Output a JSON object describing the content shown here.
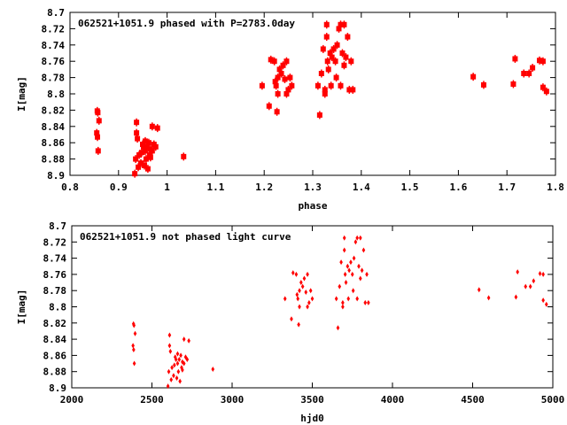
{
  "colors": {
    "points": "#ff0000",
    "axes": "#000000"
  },
  "chart_data": [
    {
      "type": "scatter",
      "title": "062521+1051.9 phased with P=2783.0day",
      "xlabel": "phase",
      "ylabel": "I[mag]",
      "xlim": [
        0.8,
        1.8
      ],
      "ylim": [
        8.7,
        8.9
      ],
      "y_inverted": true,
      "xticks": [
        "0.8",
        "0.9",
        "1",
        "1.1",
        "1.2",
        "1.3",
        "1.4",
        "1.5",
        "1.6",
        "1.7",
        "1.8"
      ],
      "yticks": [
        "8.7",
        "8.72",
        "8.74",
        "8.76",
        "8.78",
        "8.8",
        "8.82",
        "8.84",
        "8.86",
        "8.88",
        "8.9"
      ],
      "period_days": 2783.0,
      "x_source": "phase = 0.8616 + (hjd0 - 2400) / 2783.0",
      "legend": "top-left",
      "grid": false
    },
    {
      "type": "scatter",
      "title": "062521+1051.9 not phased light curve",
      "xlabel": "hjd0",
      "ylabel": "I[mag]",
      "xlim": [
        2000,
        5000
      ],
      "ylim": [
        8.7,
        8.9
      ],
      "y_inverted": true,
      "xticks": [
        "2000",
        "2500",
        "3000",
        "3500",
        "4000",
        "4500",
        "5000"
      ],
      "yticks": [
        "8.7",
        "8.72",
        "8.74",
        "8.76",
        "8.78",
        "8.8",
        "8.82",
        "8.84",
        "8.86",
        "8.88",
        "8.9"
      ],
      "legend": "top-left",
      "grid": false
    }
  ],
  "points": [
    [
      2385,
      8.821
    ],
    [
      2388,
      8.823
    ],
    [
      2395,
      8.833
    ],
    [
      2382,
      8.848
    ],
    [
      2386,
      8.853
    ],
    [
      2390,
      8.87
    ],
    [
      2610,
      8.835
    ],
    [
      2610,
      8.848
    ],
    [
      2615,
      8.855
    ],
    [
      2605,
      8.88
    ],
    [
      2620,
      8.89
    ],
    [
      2625,
      8.875
    ],
    [
      2640,
      8.872
    ],
    [
      2650,
      8.865
    ],
    [
      2660,
      8.87
    ],
    [
      2665,
      8.88
    ],
    [
      2670,
      8.865
    ],
    [
      2680,
      8.86
    ],
    [
      2690,
      8.868
    ],
    [
      2700,
      8.87
    ],
    [
      2710,
      8.862
    ],
    [
      2720,
      8.865
    ],
    [
      2600,
      8.898
    ],
    [
      2635,
      8.885
    ],
    [
      2655,
      8.888
    ],
    [
      2675,
      8.892
    ],
    [
      2690,
      8.878
    ],
    [
      2700,
      8.84
    ],
    [
      2730,
      8.842
    ],
    [
      2645,
      8.862
    ],
    [
      2660,
      8.858
    ],
    [
      2685,
      8.875
    ],
    [
      2880,
      8.877
    ],
    [
      3330,
      8.79
    ],
    [
      3370,
      8.815
    ],
    [
      3380,
      8.758
    ],
    [
      3400,
      8.76
    ],
    [
      3410,
      8.79
    ],
    [
      3415,
      8.822
    ],
    [
      3420,
      8.78
    ],
    [
      3430,
      8.77
    ],
    [
      3440,
      8.775
    ],
    [
      3450,
      8.765
    ],
    [
      3460,
      8.782
    ],
    [
      3470,
      8.76
    ],
    [
      3480,
      8.795
    ],
    [
      3490,
      8.78
    ],
    [
      3500,
      8.79
    ],
    [
      3420,
      8.8
    ],
    [
      3405,
      8.785
    ],
    [
      3470,
      8.8
    ],
    [
      3650,
      8.79
    ],
    [
      3660,
      8.826
    ],
    [
      3670,
      8.775
    ],
    [
      3680,
      8.745
    ],
    [
      3690,
      8.8
    ],
    [
      3700,
      8.73
    ],
    [
      3700,
      8.715
    ],
    [
      3705,
      8.76
    ],
    [
      3710,
      8.77
    ],
    [
      3720,
      8.75
    ],
    [
      3730,
      8.755
    ],
    [
      3740,
      8.745
    ],
    [
      3750,
      8.76
    ],
    [
      3760,
      8.74
    ],
    [
      3770,
      8.72
    ],
    [
      3780,
      8.715
    ],
    [
      3790,
      8.75
    ],
    [
      3800,
      8.765
    ],
    [
      3810,
      8.755
    ],
    [
      3820,
      8.73
    ],
    [
      3830,
      8.795
    ],
    [
      3840,
      8.76
    ],
    [
      3850,
      8.795
    ],
    [
      3800,
      8.715
    ],
    [
      3755,
      8.78
    ],
    [
      3690,
      8.795
    ],
    [
      3725,
      8.79
    ],
    [
      3780,
      8.79
    ],
    [
      4540,
      8.779
    ],
    [
      4600,
      8.789
    ],
    [
      4770,
      8.788
    ],
    [
      4780,
      8.757
    ],
    [
      4830,
      8.775
    ],
    [
      4860,
      8.775
    ],
    [
      4880,
      8.768
    ],
    [
      4920,
      8.759
    ],
    [
      4940,
      8.76
    ],
    [
      4940,
      8.792
    ],
    [
      4960,
      8.797
    ]
  ]
}
